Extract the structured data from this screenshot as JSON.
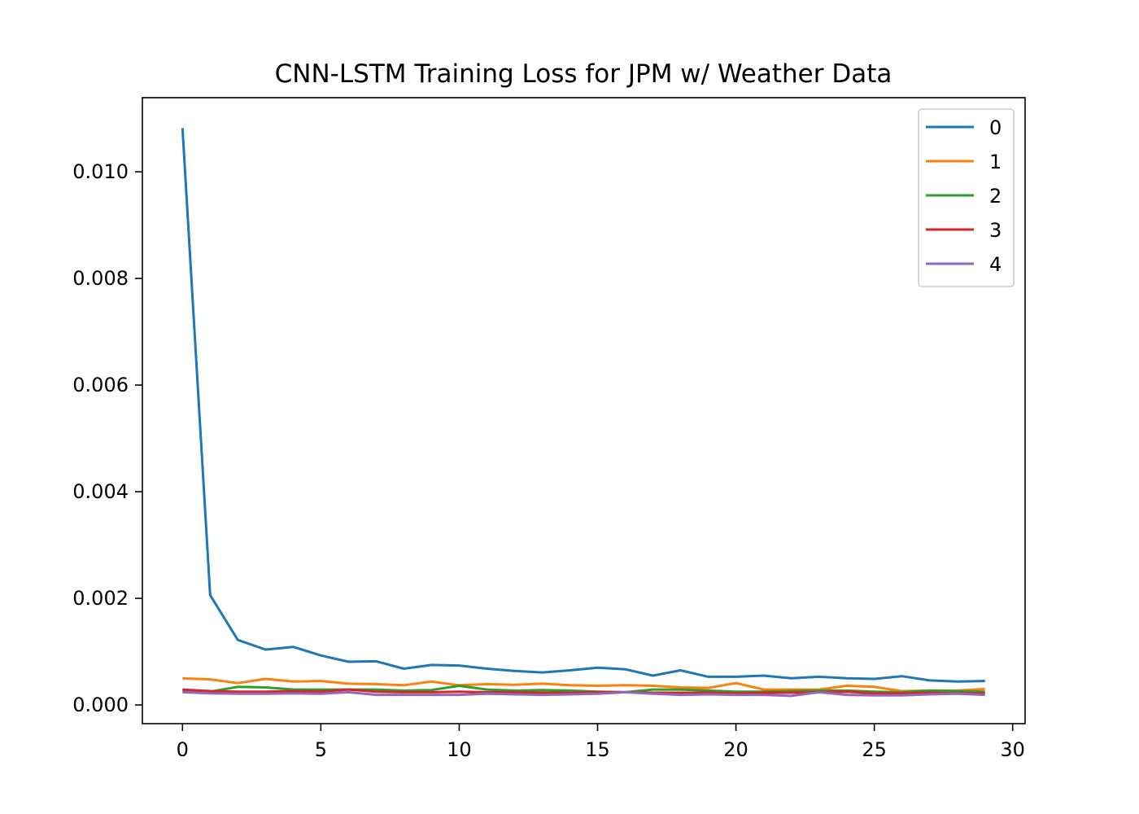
{
  "chart_data": {
    "type": "line",
    "title": "CNN-LSTM Training Loss for JPM w/ Weather Data",
    "xlabel": "",
    "ylabel": "",
    "xlim": [
      -1.45,
      30.45
    ],
    "ylim": [
      -0.00035,
      0.01139
    ],
    "xticks": [
      0,
      5,
      10,
      15,
      20,
      25,
      30
    ],
    "xtick_labels": [
      "0",
      "5",
      "10",
      "15",
      "20",
      "25",
      "30"
    ],
    "yticks": [
      0,
      0.002,
      0.004,
      0.006,
      0.008,
      0.01
    ],
    "ytick_labels": [
      "0.000",
      "0.002",
      "0.004",
      "0.006",
      "0.008",
      "0.010"
    ],
    "grid": false,
    "legend_position": "top-right",
    "x": [
      0,
      1,
      2,
      3,
      4,
      5,
      6,
      7,
      8,
      9,
      10,
      11,
      12,
      13,
      14,
      15,
      16,
      17,
      18,
      19,
      20,
      21,
      22,
      23,
      24,
      25,
      26,
      27,
      28,
      29
    ],
    "series": [
      {
        "name": "0",
        "color": "#1f77b4",
        "values": [
          0.01082,
          0.00206,
          0.00122,
          0.00104,
          0.00109,
          0.00093,
          0.00081,
          0.00082,
          0.00068,
          0.00075,
          0.00074,
          0.00068,
          0.00064,
          0.00061,
          0.00065,
          0.0007,
          0.00067,
          0.00055,
          0.00065,
          0.00053,
          0.00053,
          0.00055,
          0.0005,
          0.00053,
          0.0005,
          0.00049,
          0.00054,
          0.00046,
          0.00044,
          0.00045
        ]
      },
      {
        "name": "1",
        "color": "#ff7f0e",
        "values": [
          0.0005,
          0.00048,
          0.00041,
          0.00049,
          0.00044,
          0.00045,
          0.0004,
          0.00039,
          0.00037,
          0.00044,
          0.00037,
          0.00039,
          0.00038,
          0.0004,
          0.00037,
          0.00036,
          0.00037,
          0.00036,
          0.00033,
          0.00032,
          0.00041,
          0.00029,
          0.00029,
          0.00029,
          0.00036,
          0.00034,
          0.00026,
          0.00027,
          0.00027,
          0.0003
        ]
      },
      {
        "name": "2",
        "color": "#2ca02c",
        "values": [
          0.00027,
          0.00025,
          0.00034,
          0.00033,
          0.00029,
          0.00029,
          0.00029,
          0.00029,
          0.00027,
          0.00028,
          0.00036,
          0.00029,
          0.00027,
          0.00028,
          0.00027,
          0.00025,
          0.00024,
          0.00029,
          0.00029,
          0.00027,
          0.00025,
          0.00025,
          0.00026,
          0.00027,
          0.00027,
          0.00025,
          0.00024,
          0.00027,
          0.00026,
          0.00025
        ]
      },
      {
        "name": "3",
        "color": "#d62728",
        "values": [
          0.00029,
          0.00026,
          0.00025,
          0.00025,
          0.00026,
          0.00025,
          0.00029,
          0.00025,
          0.00024,
          0.00024,
          0.00025,
          0.00024,
          0.00024,
          0.00023,
          0.00023,
          0.00024,
          0.00024,
          0.00023,
          0.00023,
          0.00023,
          0.00022,
          0.00023,
          0.00023,
          0.00024,
          0.00025,
          0.00022,
          0.00022,
          0.00023,
          0.00022,
          0.00022
        ]
      },
      {
        "name": "4",
        "color": "#9467bd",
        "values": [
          0.00024,
          0.00022,
          0.00021,
          0.00021,
          0.00022,
          0.00021,
          0.00024,
          0.00019,
          0.00019,
          0.00019,
          0.00019,
          0.00021,
          0.0002,
          0.00019,
          0.0002,
          0.00021,
          0.00024,
          0.00021,
          0.00019,
          0.0002,
          0.00019,
          0.00019,
          0.00017,
          0.00024,
          0.00019,
          0.00018,
          0.00018,
          0.0002,
          0.00021,
          0.00019
        ]
      }
    ]
  }
}
